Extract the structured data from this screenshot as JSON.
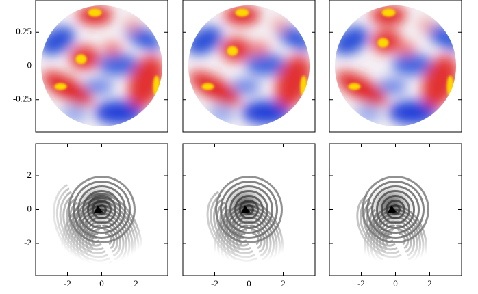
{
  "chart_data": [
    {
      "type": "heatmap",
      "colormap": "seismic",
      "xlim": [
        -0.49,
        0.49
      ],
      "ylim": [
        -0.49,
        0.49
      ],
      "yticks": [
        {
          "value": 0.25,
          "label": "0.25"
        },
        0,
        {
          "value": -0.25,
          "label": "-0.25"
        }
      ]
    },
    {
      "type": "heatmap",
      "colormap": "seismic",
      "xlim": [
        -0.49,
        0.49
      ],
      "ylim": [
        -0.49,
        0.49
      ]
    },
    {
      "type": "heatmap",
      "colormap": "seismic",
      "xlim": [
        -0.49,
        0.49
      ],
      "ylim": [
        -0.49,
        0.49
      ]
    },
    {
      "type": "heatmap",
      "colormap": "Greys",
      "xlim": [
        -3.86,
        3.86
      ],
      "ylim": [
        -3.9,
        3.9
      ],
      "yticks": [
        2,
        0,
        -2
      ],
      "xticks": [
        -2,
        0,
        2
      ]
    },
    {
      "type": "heatmap",
      "colormap": "Greys",
      "xlim": [
        -3.86,
        3.86
      ],
      "ylim": [
        -3.9,
        3.9
      ],
      "xticks": [
        -2,
        0,
        2
      ]
    },
    {
      "type": "heatmap",
      "colormap": "Greys",
      "xlim": [
        -3.86,
        3.86
      ],
      "ylim": [
        -3.9,
        3.9
      ],
      "xticks": [
        -2,
        0,
        2
      ]
    }
  ]
}
